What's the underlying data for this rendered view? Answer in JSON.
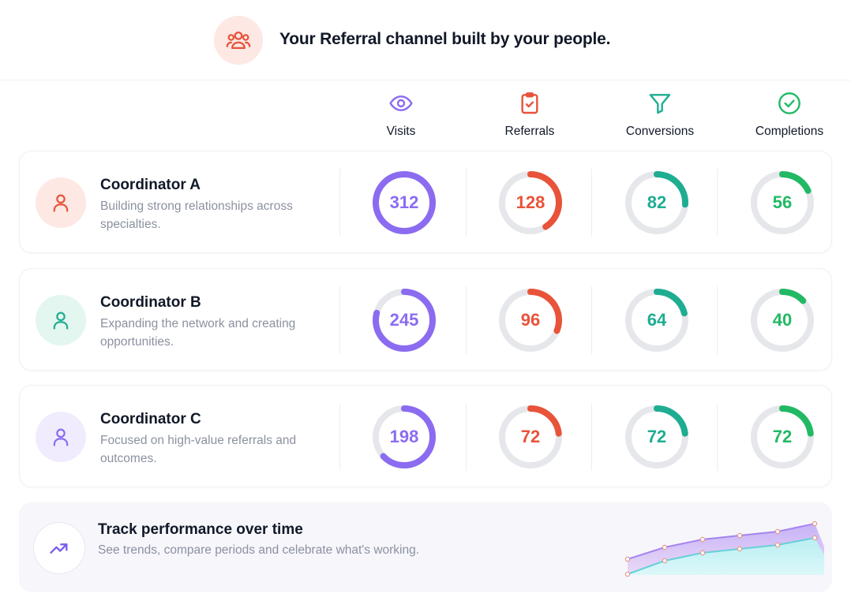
{
  "header": {
    "title": "Your Referral channel built by your people.",
    "icon": "users-icon"
  },
  "columns": [
    {
      "label": "Visits",
      "icon": "eye-icon",
      "color": "#8b6cf0"
    },
    {
      "label": "Referrals",
      "icon": "clipboard-check-icon",
      "color": "#e8533a"
    },
    {
      "label": "Conversions",
      "icon": "filter-icon",
      "color": "#1fad92"
    },
    {
      "label": "Completions",
      "icon": "check-circle-icon",
      "color": "#22b964"
    }
  ],
  "coordinators": [
    {
      "name": "Coordinator A",
      "description": "Building strong relationships across specialties.",
      "avatar_bg": "#fde8e3",
      "avatar_color": "#e8533a",
      "metrics": [
        {
          "value": "312",
          "fill": 1.0
        },
        {
          "value": "128",
          "fill": 0.41
        },
        {
          "value": "82",
          "fill": 0.26
        },
        {
          "value": "56",
          "fill": 0.18
        }
      ]
    },
    {
      "name": "Coordinator B",
      "description": "Expanding the network and creating opportunities.",
      "avatar_bg": "#e3f6ef",
      "avatar_color": "#1fad92",
      "metrics": [
        {
          "value": "245",
          "fill": 0.79
        },
        {
          "value": "96",
          "fill": 0.31
        },
        {
          "value": "64",
          "fill": 0.21
        },
        {
          "value": "40",
          "fill": 0.13
        }
      ]
    },
    {
      "name": "Coordinator C",
      "description": "Focused on high-value referrals and outcomes.",
      "avatar_bg": "#f1ecfd",
      "avatar_color": "#8b6cf0",
      "metrics": [
        {
          "value": "198",
          "fill": 0.63
        },
        {
          "value": "72",
          "fill": 0.23
        },
        {
          "value": "72",
          "fill": 0.23
        },
        {
          "value": "72",
          "fill": 0.23
        }
      ]
    }
  ],
  "track": {
    "title": "Track performance over time",
    "description": "See trends, compare periods and celebrate what's working.",
    "icon": "trending-up-icon"
  },
  "colors": {
    "track_ring": "#e5e7eb",
    "visits_text": "#8b6cf0",
    "referrals_text": "#e8533a",
    "conversions_text": "#1fad92",
    "completions_text": "#22b964"
  }
}
